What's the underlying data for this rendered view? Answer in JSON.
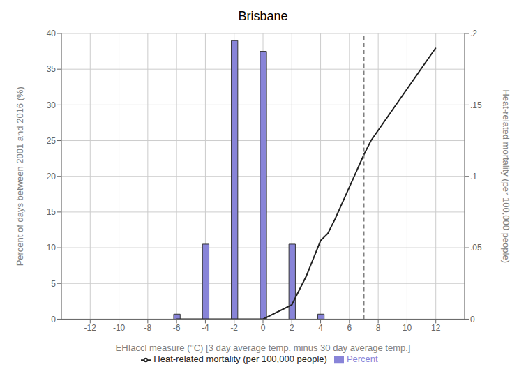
{
  "chart_data": {
    "type": "bar",
    "title": "Brisbane",
    "xlabel": "EHIaccl measure (°C) [3 day average temp. minus 30 day average temp.]",
    "ylabel": "Percent of days between 2001 and 2016 (%)",
    "y2label": "Heat-related mortality (per 100,000 people)",
    "series": [
      {
        "name": "Percent",
        "type": "bar",
        "color": "#8884d8",
        "x": [
          -6,
          -4,
          -2,
          0,
          2,
          4
        ],
        "values": [
          0.7,
          10.5,
          39.0,
          37.5,
          10.5,
          0.7
        ]
      },
      {
        "name": "Heat-related mortality (per 100,000 people)",
        "type": "line",
        "axis": "y2",
        "color": "#222222",
        "x": [
          -6,
          -4,
          -2,
          0,
          2,
          3,
          4,
          4.5,
          5,
          7,
          7.5,
          12
        ],
        "values": [
          0.0,
          0.0,
          0.0,
          0.0,
          0.01,
          0.03,
          0.055,
          0.06,
          0.07,
          0.115,
          0.125,
          0.19
        ]
      }
    ],
    "reference_lines": [
      {
        "x": 7.0,
        "color": "#808080",
        "line_style": "dashed"
      }
    ],
    "xlim": [
      -14,
      14
    ],
    "ylim": [
      0,
      40
    ],
    "y2lim": [
      0,
      0.2
    ],
    "xticks": [
      -12,
      -10,
      -8,
      -6,
      -4,
      -2,
      0,
      2,
      4,
      6,
      8,
      10,
      12
    ],
    "yticks": [
      0,
      5,
      10,
      15,
      20,
      25,
      30,
      35,
      40
    ],
    "y2ticks": [
      0,
      {
        "value": 0.05,
        "label": ".05"
      },
      {
        "value": 0.1,
        "label": ".1"
      },
      {
        "value": 0.15,
        "label": ".15"
      },
      {
        "value": 0.2,
        "label": ".2"
      }
    ],
    "grid": true,
    "legend": "bottom"
  }
}
